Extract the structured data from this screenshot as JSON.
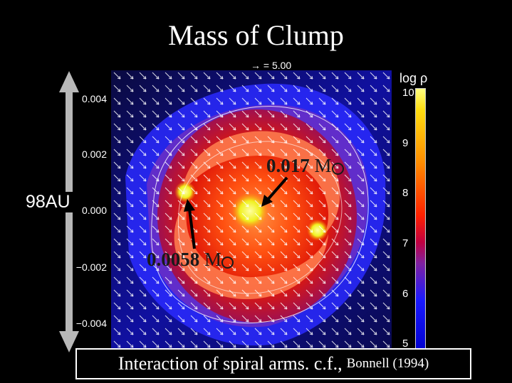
{
  "title": "Mass of Clump",
  "vector_scale_label": "→ = 5.00",
  "y_ticks": [
    "0.004",
    "0.002",
    "0.000",
    "−0.002",
    "−0.004"
  ],
  "colorbar": {
    "title": "log ρ",
    "ticks": [
      "10",
      "9",
      "8",
      "7",
      "6",
      "5"
    ]
  },
  "scale_bar_label": "98AU",
  "clumps": [
    {
      "mass_value": "0.017",
      "unit": "M"
    },
    {
      "mass_value": "0.0058",
      "unit": "M"
    }
  ],
  "caption": {
    "main": "Interaction of spiral arms. c.f.,",
    "reference": "Bonnell (1994)"
  },
  "colors": {
    "background": "#000000",
    "high_density": "#ffff40",
    "mid_density": "#ff3000",
    "low_density": "#2020ff"
  }
}
